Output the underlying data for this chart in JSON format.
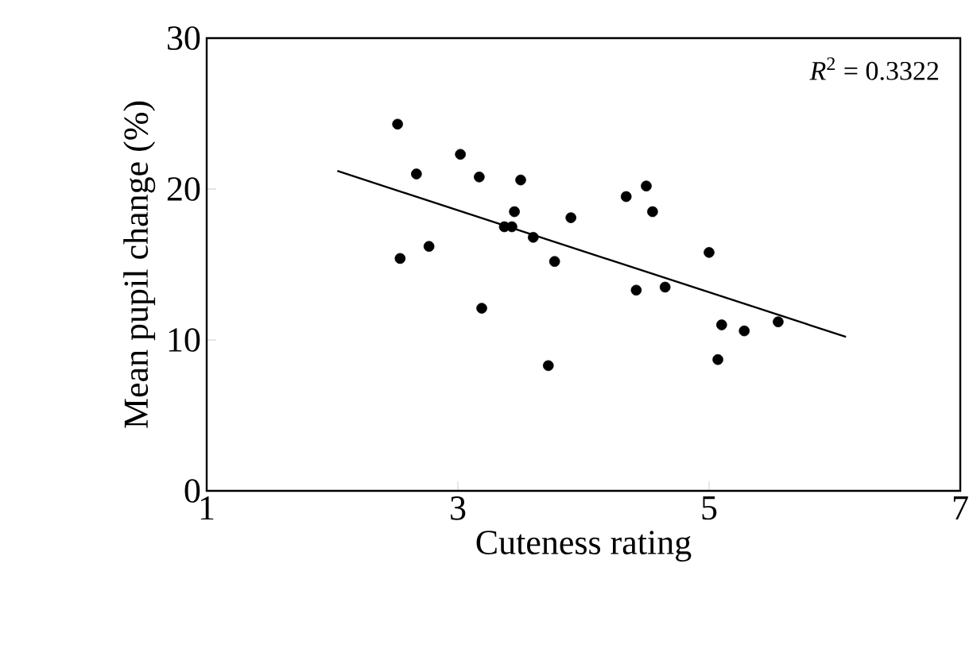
{
  "chart_data": {
    "type": "scatter",
    "xlabel": "Cuteness rating",
    "ylabel": "Mean pupil change (%)",
    "xlim": [
      1,
      7
    ],
    "xticks": [
      1,
      3,
      5,
      7
    ],
    "ylim": [
      0,
      30
    ],
    "yticks": [
      0,
      10,
      20,
      30
    ],
    "grid": false,
    "annotations": [
      "*R*$^{2}$ = 0.3322"
    ],
    "series": [
      {
        "color": "#000000",
        "marker": "circle",
        "x": [
          2.52,
          2.67,
          2.54,
          2.77,
          3.02,
          3.17,
          3.19,
          3.5,
          3.45,
          3.37,
          3.43,
          3.6,
          3.77,
          3.9,
          3.72,
          4.34,
          4.5,
          4.55,
          4.42,
          4.65,
          5.0,
          5.1,
          5.28,
          5.07,
          5.55
        ],
        "values": [
          24.3,
          21.0,
          15.4,
          16.2,
          22.3,
          20.8,
          12.1,
          20.6,
          18.5,
          17.5,
          17.5,
          16.8,
          15.2,
          18.1,
          8.3,
          19.5,
          20.2,
          18.5,
          13.3,
          13.5,
          15.8,
          11.0,
          10.6,
          8.7,
          11.2
        ]
      },
      {
        "type": "line",
        "color": "#000000",
        "marker": "none",
        "x": [
          2.04,
          6.09
        ],
        "values": [
          21.2,
          10.2
        ]
      }
    ]
  }
}
